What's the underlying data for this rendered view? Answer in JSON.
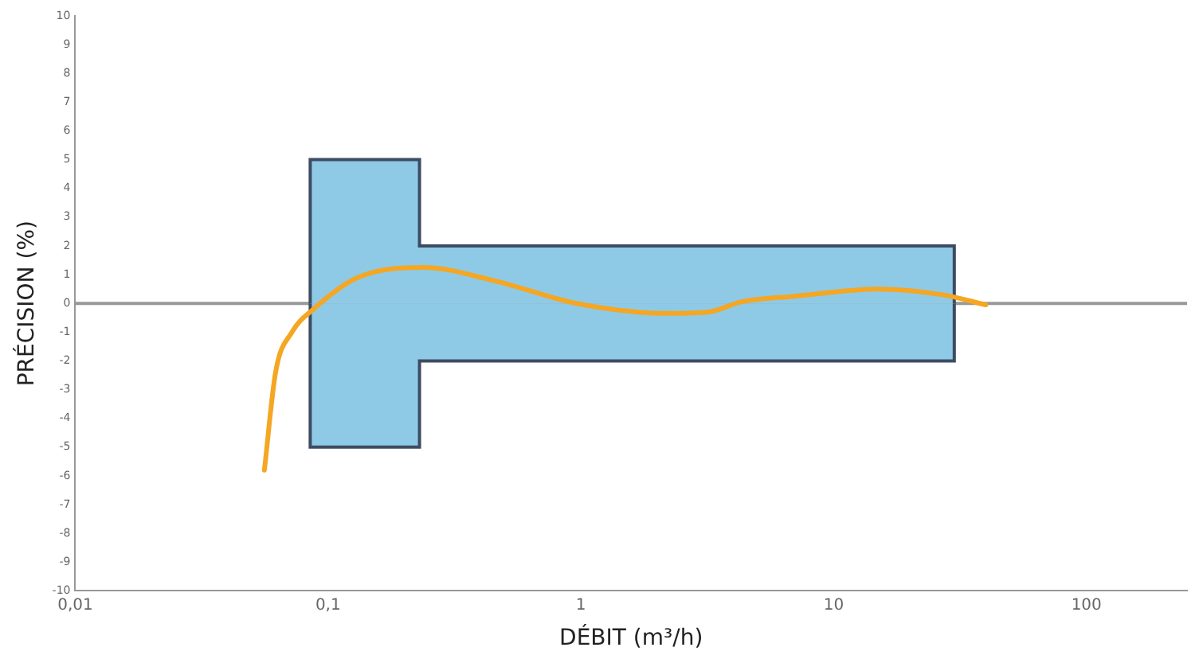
{
  "chart_data": {
    "type": "line",
    "xlabel": "DÉBIT (m³/h)",
    "ylabel": "PRÉCISION (%)",
    "log": "x",
    "xlim": [
      0.01,
      250
    ],
    "xticks": [
      {
        "value": 0.01,
        "label": "0,01"
      },
      {
        "value": 0.1,
        "label": "0,1"
      },
      1,
      10,
      100
    ],
    "ylim": [
      -10,
      10
    ],
    "yticks": [
      -10,
      -9,
      -8,
      -7,
      -6,
      -5,
      -4,
      -3,
      -2,
      -1,
      0,
      1,
      2,
      3,
      4,
      5,
      6,
      7,
      8,
      9,
      10
    ],
    "grid": false,
    "legend": false,
    "series": [
      {
        "type": "area",
        "color": "#8ecae6",
        "x": [
          0.085,
          0.085,
          0.23,
          0.23,
          30,
          30
        ],
        "values": [
          0,
          5,
          5,
          2,
          2,
          0
        ]
      },
      {
        "type": "area",
        "color": "#8ecae6",
        "x": [
          0.085,
          0.085,
          0.23,
          0.23,
          30,
          30
        ],
        "values": [
          0,
          -5,
          -5,
          -2,
          -2,
          0
        ]
      },
      {
        "color": "#f5a623",
        "x": [
          0.056,
          0.062,
          0.072,
          0.0875,
          0.131,
          0.238,
          0.45,
          0.96,
          2.2,
          3.2,
          4.3,
          7,
          15,
          27,
          40
        ],
        "values": [
          -5.8,
          -2.4,
          -1.0,
          -0.2,
          0.9,
          1.25,
          0.8,
          0,
          -0.35,
          -0.3,
          0.05,
          0.25,
          0.5,
          0.3,
          -0.05
        ]
      }
    ],
    "ref_lines": [
      {
        "axis": "y",
        "value": 0,
        "color": "#999999"
      }
    ]
  }
}
